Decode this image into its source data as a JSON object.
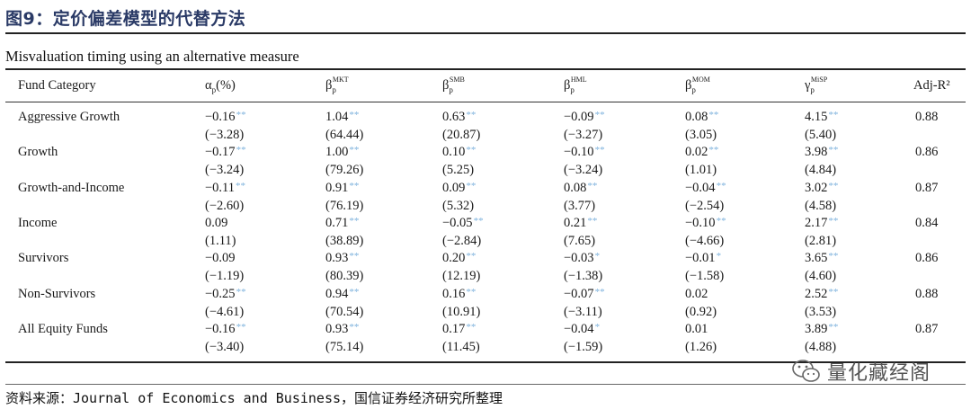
{
  "figure_title": "图9：定价偏差模型的代替方法",
  "subtitle": "Misvaluation timing using an alternative measure",
  "headers": {
    "fund_category": "Fund Category",
    "alpha_sym": "α",
    "alpha_sub": "p",
    "alpha_unit": "(%)",
    "beta_sym": "β",
    "beta_sub": "p",
    "mkt_sup": "MKT",
    "smb_sup": "SMB",
    "hml_sup": "HML",
    "mom_sup": "MOM",
    "gamma_sym": "γ",
    "gamma_sub": "p",
    "misp_sup": "MiSP",
    "adj_r2": "Adj-R²"
  },
  "rows": [
    {
      "category": "Aggressive Growth",
      "alpha": {
        "v": "−0.16",
        "s": "**",
        "t": "(−3.28)"
      },
      "mkt": {
        "v": "1.04",
        "s": "**",
        "t": "(64.44)"
      },
      "smb": {
        "v": "0.63",
        "s": "**",
        "t": "(20.87)"
      },
      "hml": {
        "v": "−0.09",
        "s": "**",
        "t": "(−3.27)"
      },
      "mom": {
        "v": "0.08",
        "s": "**",
        "t": "(3.05)"
      },
      "misp": {
        "v": "4.15",
        "s": "**",
        "t": "(5.40)"
      },
      "adj_r2": "0.88"
    },
    {
      "category": "Growth",
      "alpha": {
        "v": "−0.17",
        "s": "**",
        "t": "(−3.24)"
      },
      "mkt": {
        "v": "1.00",
        "s": "**",
        "t": "(79.26)"
      },
      "smb": {
        "v": "0.10",
        "s": "**",
        "t": "(5.25)"
      },
      "hml": {
        "v": "−0.10",
        "s": "**",
        "t": "(−3.24)"
      },
      "mom": {
        "v": "0.02",
        "s": "**",
        "t": "(1.01)"
      },
      "misp": {
        "v": "3.98",
        "s": "**",
        "t": "(4.84)"
      },
      "adj_r2": "0.86"
    },
    {
      "category": "Growth-and-Income",
      "alpha": {
        "v": "−0.11",
        "s": "**",
        "t": "(−2.60)"
      },
      "mkt": {
        "v": "0.91",
        "s": "**",
        "t": "(76.19)"
      },
      "smb": {
        "v": "0.09",
        "s": "**",
        "t": "(5.32)"
      },
      "hml": {
        "v": "0.08",
        "s": "**",
        "t": "(3.77)"
      },
      "mom": {
        "v": "−0.04",
        "s": "**",
        "t": "(−2.54)"
      },
      "misp": {
        "v": "3.02",
        "s": "**",
        "t": "(4.58)"
      },
      "adj_r2": "0.87"
    },
    {
      "category": "Income",
      "alpha": {
        "v": "0.09",
        "s": "",
        "t": "(1.11)"
      },
      "mkt": {
        "v": "0.71",
        "s": "**",
        "t": "(38.89)"
      },
      "smb": {
        "v": "−0.05",
        "s": "**",
        "t": "(−2.84)"
      },
      "hml": {
        "v": "0.21",
        "s": "**",
        "t": "(7.65)"
      },
      "mom": {
        "v": "−0.10",
        "s": "**",
        "t": "(−4.66)"
      },
      "misp": {
        "v": "2.17",
        "s": "**",
        "t": "(2.81)"
      },
      "adj_r2": "0.84"
    },
    {
      "category": "Survivors",
      "alpha": {
        "v": "−0.09",
        "s": "",
        "t": "(−1.19)"
      },
      "mkt": {
        "v": "0.93",
        "s": "**",
        "t": "(80.39)"
      },
      "smb": {
        "v": "0.20",
        "s": "**",
        "t": "(12.19)"
      },
      "hml": {
        "v": "−0.03",
        "s": "*",
        "t": "(−1.38)"
      },
      "mom": {
        "v": "−0.01",
        "s": "*",
        "t": "(−1.58)"
      },
      "misp": {
        "v": "3.65",
        "s": "**",
        "t": "(4.60)"
      },
      "adj_r2": "0.86"
    },
    {
      "category": "Non-Survivors",
      "alpha": {
        "v": "−0.25",
        "s": "**",
        "t": "(−4.61)"
      },
      "mkt": {
        "v": "0.94",
        "s": "**",
        "t": "(70.54)"
      },
      "smb": {
        "v": "0.16",
        "s": "**",
        "t": "(10.91)"
      },
      "hml": {
        "v": "−0.07",
        "s": "**",
        "t": "(−3.11)"
      },
      "mom": {
        "v": "0.02",
        "s": "",
        "t": "(0.92)"
      },
      "misp": {
        "v": "2.52",
        "s": "**",
        "t": "(3.53)"
      },
      "adj_r2": "0.88"
    },
    {
      "category": "All Equity Funds",
      "alpha": {
        "v": "−0.16",
        "s": "**",
        "t": "(−3.40)"
      },
      "mkt": {
        "v": "0.93",
        "s": "**",
        "t": "(75.14)"
      },
      "smb": {
        "v": "0.17",
        "s": "**",
        "t": "(11.45)"
      },
      "hml": {
        "v": "−0.04",
        "s": "*",
        "t": "(−1.59)"
      },
      "mom": {
        "v": "0.01",
        "s": "",
        "t": "(1.26)"
      },
      "misp": {
        "v": "3.89",
        "s": "**",
        "t": "(4.88)"
      },
      "adj_r2": "0.87"
    }
  ],
  "source": "资料来源：Journal of Economics and Business，国信证券经济研究所整理",
  "watermark": {
    "icon": "wechat-icon",
    "text": "量化藏经阁"
  },
  "colors": {
    "title": "#2a3a66",
    "stars": "#7fb3dd"
  }
}
